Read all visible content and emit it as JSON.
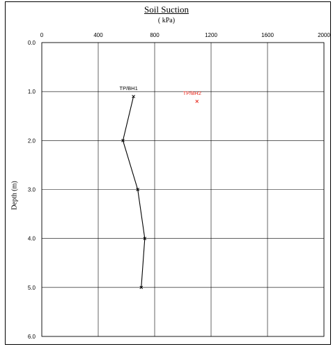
{
  "chart_data": {
    "type": "line",
    "title": "Soil Suction",
    "subtitle": "( kPa)",
    "xlabel": "( kPa)",
    "ylabel": "Depth (m)",
    "xlim": [
      0,
      2000
    ],
    "ylim": [
      0,
      6
    ],
    "x_ticks": [
      "0",
      "400",
      "800",
      "1200",
      "1600",
      "2000"
    ],
    "y_ticks": [
      "0.0",
      "1.0",
      "2.0",
      "3.0",
      "4.0",
      "5.0",
      "6.0"
    ],
    "x_axis_position": "top",
    "y_axis_inverted": true,
    "grid": true,
    "series": [
      {
        "name": "TP/BH1",
        "color": "#000000",
        "marker": "x",
        "points": [
          {
            "x": 650,
            "y": 1.1
          },
          {
            "x": 575,
            "y": 2.0
          },
          {
            "x": 680,
            "y": 3.0
          },
          {
            "x": 730,
            "y": 4.0
          },
          {
            "x": 705,
            "y": 5.0
          }
        ]
      },
      {
        "name": "TP/BH2",
        "color": "#e8261b",
        "marker": "x",
        "points": [
          {
            "x": 1100,
            "y": 1.2
          }
        ]
      }
    ]
  }
}
